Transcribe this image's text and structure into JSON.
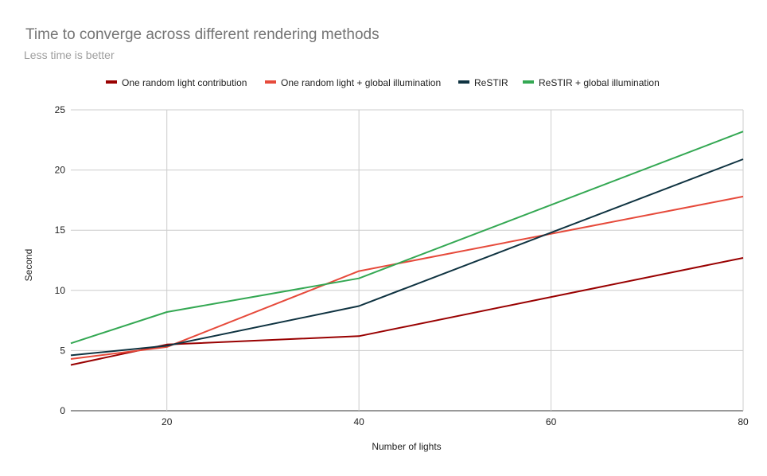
{
  "chart_data": {
    "type": "line",
    "title": "Time to converge across different rendering methods",
    "subtitle": "Less time is better",
    "xlabel": "Number of lights",
    "ylabel": "Second",
    "x": [
      10,
      20,
      40,
      80
    ],
    "xlim": [
      10,
      80
    ],
    "ylim": [
      0,
      25
    ],
    "xticks": [
      20,
      40,
      60,
      80
    ],
    "yticks": [
      0,
      5,
      10,
      15,
      20,
      25
    ],
    "grid": true,
    "legend_position": "top",
    "series": [
      {
        "name": "One random light contribution",
        "color": "#990000",
        "values": [
          3.8,
          5.5,
          6.2,
          12.7
        ]
      },
      {
        "name": "One random light + global illumination",
        "color": "#e64a3b",
        "values": [
          4.3,
          5.3,
          11.6,
          17.8
        ]
      },
      {
        "name": "ReSTIR",
        "color": "#0f3341",
        "values": [
          4.6,
          5.4,
          8.7,
          20.9
        ]
      },
      {
        "name": "ReSTIR + global illumination",
        "color": "#34a853",
        "values": [
          5.6,
          8.2,
          11.0,
          23.2
        ]
      }
    ]
  }
}
